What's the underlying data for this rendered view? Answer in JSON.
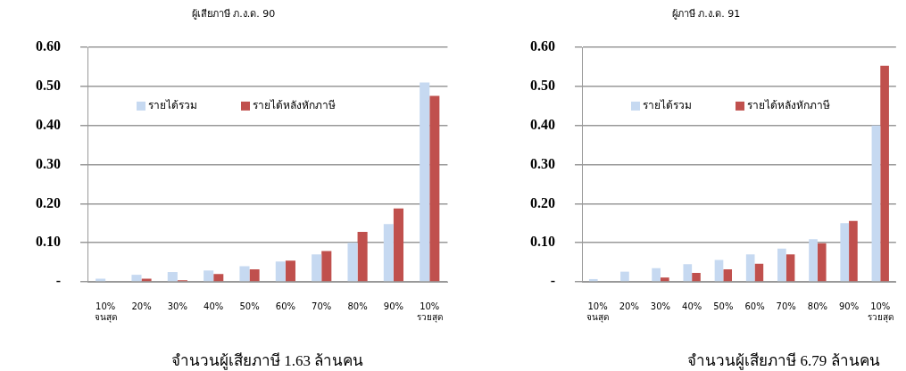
{
  "chart_data": [
    {
      "type": "bar",
      "title": "ผู้เสียภาษี ภ.ง.ด. 90",
      "categories": [
        "10% จนสุด",
        "20%",
        "30%",
        "40%",
        "50%",
        "60%",
        "70%",
        "80%",
        "90%",
        "10% รวยสุด"
      ],
      "series": [
        {
          "name": "รายได้รวม",
          "color": "#c6d9f1",
          "values": [
            0.008,
            0.018,
            0.025,
            0.029,
            0.04,
            0.052,
            0.07,
            0.1,
            0.148,
            0.51
          ]
        },
        {
          "name": "รายได้หลังหักภาษี",
          "color": "#c0504d",
          "values": [
            0,
            0.008,
            0.004,
            0.02,
            0.032,
            0.054,
            0.079,
            0.128,
            0.188,
            0.476
          ]
        }
      ],
      "ylim": [
        0,
        0.6
      ],
      "yticks": [
        {
          "value": 0,
          "label": "-"
        },
        {
          "value": 0.1,
          "label": "0.10"
        },
        {
          "value": 0.2,
          "label": "0.20"
        },
        {
          "value": 0.3,
          "label": "0.30"
        },
        {
          "value": 0.4,
          "label": "0.40"
        },
        {
          "value": 0.5,
          "label": "0.50"
        },
        {
          "value": 0.6,
          "label": "0.60"
        }
      ],
      "grid": "y",
      "legend": "top left",
      "annotations": [
        "จำนวนผู้เสียภาษี 1.63 ล้านคน"
      ]
    },
    {
      "type": "bar",
      "title": "ผู้ภาษี ภ.ง.ด. 91",
      "categories": [
        "10% จนสุด",
        "20%",
        "30%",
        "40%",
        "50%",
        "60%",
        "70%",
        "80%",
        "90%",
        "10% รวยสุด"
      ],
      "series": [
        {
          "name": "รายได้รวม",
          "color": "#c6d9f1",
          "values": [
            0.007,
            0.026,
            0.035,
            0.045,
            0.056,
            0.07,
            0.085,
            0.109,
            0.15,
            0.4
          ]
        },
        {
          "name": "รายได้หลังหักภาษี",
          "color": "#c0504d",
          "values": [
            0,
            0,
            0.011,
            0.023,
            0.032,
            0.046,
            0.07,
            0.099,
            0.156,
            0.553
          ]
        }
      ],
      "ylim": [
        0,
        0.6
      ],
      "yticks": [
        {
          "value": 0,
          "label": "-"
        },
        {
          "value": 0.1,
          "label": "0.10"
        },
        {
          "value": 0.2,
          "label": "0.20"
        },
        {
          "value": 0.3,
          "label": "0.30"
        },
        {
          "value": 0.4,
          "label": "0.40"
        },
        {
          "value": 0.5,
          "label": "0.50"
        },
        {
          "value": 0.6,
          "label": "0.60"
        }
      ],
      "grid": "y",
      "legend": "top left",
      "annotations": [
        "จำนวนผู้เสียภาษี 6.79 ล้านคน"
      ]
    }
  ]
}
